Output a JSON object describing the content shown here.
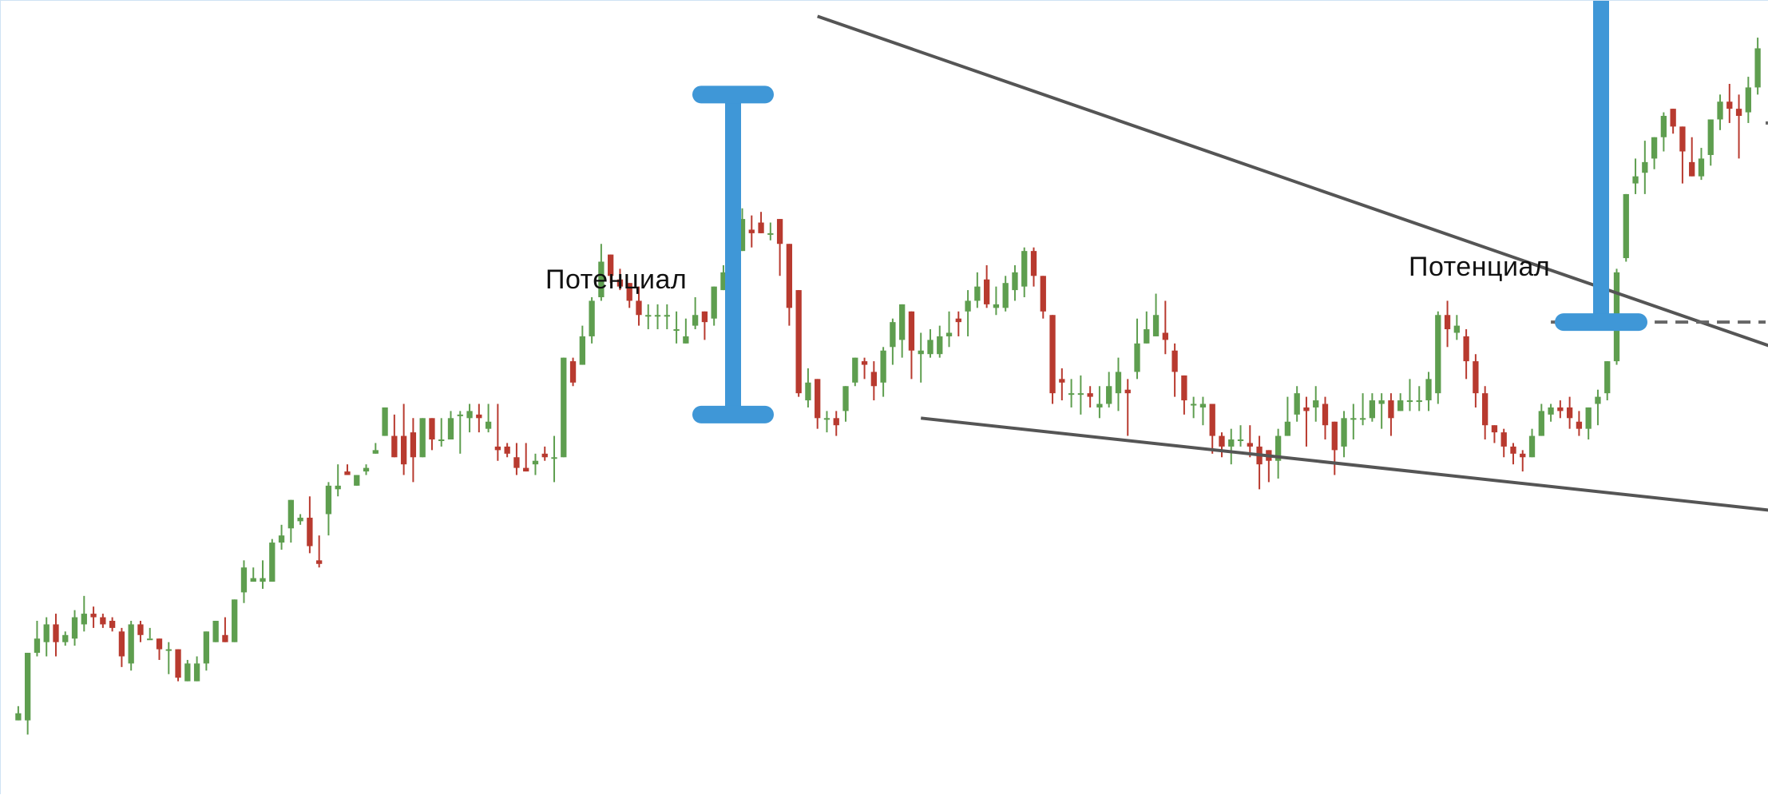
{
  "chart_data": {
    "type": "candlestick",
    "title": "",
    "xlabel": "",
    "ylabel": "",
    "grid": false,
    "colors": {
      "up": "#5e9e4f",
      "down": "#b83a2f",
      "trendline": "#555555",
      "measure": "#3f97d7",
      "level": "#666666"
    },
    "annotations": {
      "potential_left": "Потенциал",
      "potential_right": "Потенциал"
    },
    "pattern": "descending-wedge",
    "candles": [
      [
        14,
        12,
        14,
        16,
        12
      ],
      [
        30,
        12,
        31,
        31,
        8
      ],
      [
        35,
        31,
        35,
        40,
        30
      ],
      [
        39,
        34,
        39,
        41,
        30
      ],
      [
        33,
        39,
        34,
        42,
        30
      ],
      [
        34,
        34,
        36,
        37,
        33
      ],
      [
        40,
        35,
        41,
        43,
        33
      ],
      [
        47,
        39,
        42,
        47,
        37
      ],
      [
        41,
        42,
        41,
        44,
        38
      ],
      [
        40,
        41,
        39,
        42,
        38
      ],
      [
        38,
        40,
        38,
        41,
        37
      ],
      [
        29,
        37,
        30,
        38,
        27
      ],
      [
        39,
        28,
        39,
        40,
        26
      ],
      [
        38,
        39,
        36,
        40,
        34
      ],
      [
        36,
        35,
        35,
        38,
        35
      ],
      [
        32,
        35,
        32,
        35,
        29
      ],
      [
        33,
        32,
        32,
        34,
        25
      ],
      [
        25,
        32,
        24,
        32,
        23
      ],
      [
        27,
        23,
        28,
        29,
        26
      ],
      [
        28,
        23,
        28,
        30,
        23
      ],
      [
        35,
        28,
        37,
        37,
        26
      ],
      [
        38,
        34,
        40,
        40,
        34
      ],
      [
        34,
        36,
        34,
        41,
        34
      ],
      [
        42,
        34,
        46,
        46,
        34
      ],
      [
        45,
        48,
        55,
        57,
        45
      ],
      [
        55,
        51,
        52,
        55,
        51
      ],
      [
        56,
        51,
        52,
        57,
        49
      ],
      [
        55,
        51,
        62,
        63,
        51
      ],
      [
        62,
        62,
        64,
        67,
        60
      ],
      [
        64,
        66,
        74,
        70,
        62
      ],
      [
        75,
        68,
        69,
        70,
        67
      ],
      [
        63,
        69,
        61,
        75,
        59
      ],
      [
        64,
        57,
        56,
        64,
        55
      ],
      [
        64,
        70,
        78,
        79,
        64
      ],
      [
        78,
        77,
        78,
        84,
        75
      ],
      [
        78,
        82,
        81,
        84,
        82
      ],
      [
        81,
        78,
        81,
        81,
        80
      ],
      [
        83,
        82,
        83,
        84,
        81
      ],
      [
        79,
        87,
        88,
        90,
        87
      ],
      [
        88,
        92,
        100,
        100,
        92
      ],
      [
        97,
        92,
        86,
        98,
        86
      ],
      [
        85,
        92,
        84,
        101,
        81
      ],
      [
        84,
        93,
        86,
        97,
        79
      ],
      [
        91,
        86,
        97,
        97,
        86
      ],
      [
        95,
        97,
        91,
        97,
        88
      ],
      [
        92,
        91,
        91,
        97,
        89
      ],
      [
        99,
        91,
        97,
        99,
        91
      ],
      [
        91,
        98,
        98,
        99,
        87
      ],
      [
        95,
        97,
        99,
        101,
        93
      ],
      [
        99,
        98,
        97,
        101,
        93
      ],
      [
        97,
        94,
        96,
        101,
        93
      ],
      [
        99,
        89,
        88,
        101,
        85
      ],
      [
        87,
        89,
        87,
        90,
        86
      ],
      [
        87,
        86,
        83,
        90,
        81
      ],
      [
        85,
        83,
        82,
        90,
        84
      ],
      [
        86,
        84,
        85,
        87,
        81
      ],
      [
        87,
        87,
        86,
        89,
        85
      ],
      [
        92,
        86,
        86,
        92,
        79
      ],
      [
        109,
        86,
        114,
        114,
        86
      ],
      [
        114,
        113,
        107,
        114,
        106
      ],
      [
        110,
        112,
        120,
        123,
        112
      ],
      [
        123,
        120,
        130,
        131,
        118
      ],
      [
        132,
        131,
        141,
        146,
        130
      ],
      [
        136,
        143,
        137,
        141,
        135
      ],
      [
        139,
        136,
        134,
        139,
        133
      ],
      [
        135,
        135,
        130,
        135,
        128
      ],
      [
        134,
        130,
        126,
        134,
        123
      ],
      [
        131,
        126,
        126,
        129,
        122
      ],
      [
        126,
        126,
        126,
        129,
        122
      ],
      [
        128,
        126,
        126,
        129,
        122
      ],
      [
        124,
        122,
        122,
        127,
        118
      ],
      [
        124,
        118,
        120,
        125,
        118
      ],
      [
        121,
        123,
        126,
        131,
        122
      ],
      [
        128,
        127,
        124,
        127,
        119
      ],
      [
        128,
        125,
        134,
        134,
        123
      ],
      [
        135,
        133,
        138,
        140,
        133
      ],
      [
        141,
        138,
        142,
        152,
        136
      ],
      [
        147,
        144,
        153,
        156,
        144
      ],
      [
        149,
        150,
        149,
        154,
        145
      ],
      [
        150,
        152,
        149,
        155,
        150
      ],
      [
        153,
        149,
        149,
        152,
        147
      ],
      [
        154,
        153,
        146,
        152,
        137
      ],
      [
        143,
        146,
        128,
        141,
        123
      ],
      [
        123,
        133,
        104,
        133,
        103
      ],
      [
        103,
        102,
        107,
        111,
        100
      ],
      [
        102,
        108,
        97,
        108,
        94
      ],
      [
        99,
        97,
        97,
        99,
        93
      ],
      [
        96,
        97,
        95,
        99,
        92
      ],
      [
        98,
        99,
        106,
        106,
        96
      ],
      [
        107,
        107,
        114,
        114,
        106
      ],
      [
        113,
        113,
        112,
        114,
        108
      ],
      [
        112,
        110,
        106,
        113,
        102
      ],
      [
        104,
        107,
        116,
        117,
        103
      ],
      [
        115,
        117,
        124,
        125,
        112
      ],
      [
        125,
        119,
        129,
        129,
        114
      ],
      [
        128,
        127,
        116,
        127,
        108
      ],
      [
        116,
        115,
        116,
        121,
        107
      ],
      [
        115,
        115,
        119,
        122,
        114
      ],
      [
        115,
        115,
        120,
        123,
        114
      ],
      [
        118,
        120,
        121,
        127,
        117
      ],
      [
        124,
        125,
        124,
        127,
        120
      ],
      [
        126,
        127,
        130,
        133,
        120
      ],
      [
        127,
        130,
        134,
        138,
        128
      ],
      [
        134,
        136,
        129,
        140,
        128
      ],
      [
        133,
        128,
        129,
        134,
        126
      ],
      [
        129,
        128,
        135,
        137,
        127
      ],
      [
        130,
        133,
        138,
        140,
        130
      ],
      [
        131,
        134,
        144,
        145,
        131
      ],
      [
        143,
        144,
        137,
        145,
        134
      ],
      [
        137,
        137,
        127,
        137,
        125
      ],
      [
        123,
        126,
        104,
        126,
        101
      ],
      [
        104,
        108,
        107,
        111,
        102
      ],
      [
        103,
        104,
        104,
        108,
        100
      ],
      [
        102,
        104,
        104,
        109,
        98
      ],
      [
        101,
        104,
        103,
        106,
        100
      ],
      [
        101,
        100,
        101,
        106,
        97
      ],
      [
        103,
        101,
        106,
        110,
        100
      ],
      [
        107,
        104,
        110,
        114,
        99
      ],
      [
        109,
        105,
        104,
        108,
        92
      ],
      [
        111,
        110,
        118,
        125,
        108
      ],
      [
        125,
        118,
        122,
        127,
        118
      ],
      [
        128,
        120,
        126,
        132,
        120
      ],
      [
        130,
        121,
        119,
        130,
        115
      ],
      [
        120,
        116,
        110,
        118,
        103
      ],
      [
        101,
        109,
        102,
        108,
        98
      ],
      [
        104,
        101,
        101,
        103,
        97
      ],
      [
        101,
        100,
        101,
        103,
        95
      ],
      [
        98,
        101,
        92,
        101,
        87
      ],
      [
        91,
        92,
        89,
        93,
        86
      ],
      [
        84,
        89,
        91,
        94,
        84
      ],
      [
        90,
        91,
        91,
        95,
        89
      ],
      [
        91,
        90,
        89,
        95,
        86
      ],
      [
        91,
        89,
        84,
        92,
        77
      ],
      [
        83,
        88,
        85,
        88,
        79
      ],
      [
        92,
        85,
        92,
        94,
        80
      ],
      [
        99,
        92,
        96,
        103,
        92
      ],
      [
        96,
        98,
        104,
        106,
        96
      ],
      [
        105,
        100,
        99,
        103,
        89
      ],
      [
        98,
        100,
        102,
        106,
        96
      ],
      [
        103,
        101,
        95,
        103,
        91
      ],
      [
        95,
        96,
        88,
        95,
        81
      ],
      [
        87,
        89,
        97,
        99,
        86
      ],
      [
        99,
        97,
        97,
        101,
        91
      ],
      [
        96,
        97,
        97,
        104,
        95
      ],
      [
        98,
        97,
        102,
        104,
        96
      ],
      [
        102,
        101,
        102,
        104,
        94
      ],
      [
        101,
        102,
        97,
        104,
        92
      ],
      [
        100,
        99,
        102,
        104,
        99
      ],
      [
        101,
        102,
        102,
        108,
        99
      ],
      [
        103,
        102,
        102,
        106,
        99
      ],
      [
        105,
        102,
        108,
        110,
        99
      ],
      [
        116,
        104,
        126,
        127,
        101
      ],
      [
        126,
        126,
        122,
        130,
        117
      ],
      [
        123,
        121,
        123,
        126,
        119
      ],
      [
        120,
        120,
        113,
        122,
        108
      ],
      [
        113,
        113,
        104,
        115,
        100
      ],
      [
        104,
        104,
        95,
        106,
        91
      ],
      [
        94,
        95,
        93,
        95,
        90
      ],
      [
        91,
        93,
        89,
        94,
        86
      ],
      [
        89,
        89,
        87,
        90,
        84
      ],
      [
        86,
        87,
        86,
        88,
        82
      ],
      [
        91,
        86,
        92,
        94,
        87
      ],
      [
        96,
        92,
        99,
        101,
        93
      ],
      [
        98,
        98,
        100,
        101,
        96
      ],
      [
        102,
        100,
        99,
        102,
        97
      ],
      [
        100,
        100,
        97,
        103,
        94
      ],
      [
        97,
        96,
        94,
        99,
        92
      ],
      [
        96,
        94,
        100,
        100,
        91
      ],
      [
        102,
        101,
        103,
        105,
        95
      ],
      [
        108,
        104,
        113,
        113,
        102
      ],
      [
        125,
        113,
        138,
        139,
        112
      ],
      [
        150,
        142,
        160,
        160,
        141
      ],
      [
        162,
        163,
        165,
        170,
        160
      ],
      [
        166,
        166,
        169,
        175,
        160
      ],
      [
        169,
        170,
        176,
        176,
        167
      ],
      [
        176,
        176,
        182,
        183,
        172
      ],
      [
        180,
        184,
        179,
        184,
        177
      ],
      [
        179,
        179,
        172,
        179,
        163
      ],
      [
        171,
        169,
        165,
        176,
        167
      ],
      [
        167,
        165,
        170,
        173,
        164
      ],
      [
        172,
        171,
        181,
        181,
        168
      ],
      [
        181,
        181,
        186,
        188,
        178
      ],
      [
        184,
        186,
        184,
        191,
        180
      ],
      [
        184,
        184,
        182,
        188,
        170
      ],
      [
        184,
        183,
        190,
        193,
        180
      ],
      [
        193,
        190,
        201,
        204,
        188
      ]
    ],
    "ylim": [
      0,
      220
    ],
    "trendlines": [
      {
        "name": "upper",
        "from": [
          85,
          210
        ],
        "to": [
          215,
          91
        ]
      },
      {
        "name": "lower",
        "from": [
          96,
          97
        ],
        "to": [
          211,
          64
        ]
      }
    ],
    "levels": [
      {
        "name": "breakout-level",
        "from": [
          163,
          124
        ],
        "to": [
          196,
          124
        ]
      },
      {
        "name": "target-level",
        "from": [
          196,
          180
        ],
        "to": [
          226,
          180
        ]
      }
    ]
  }
}
